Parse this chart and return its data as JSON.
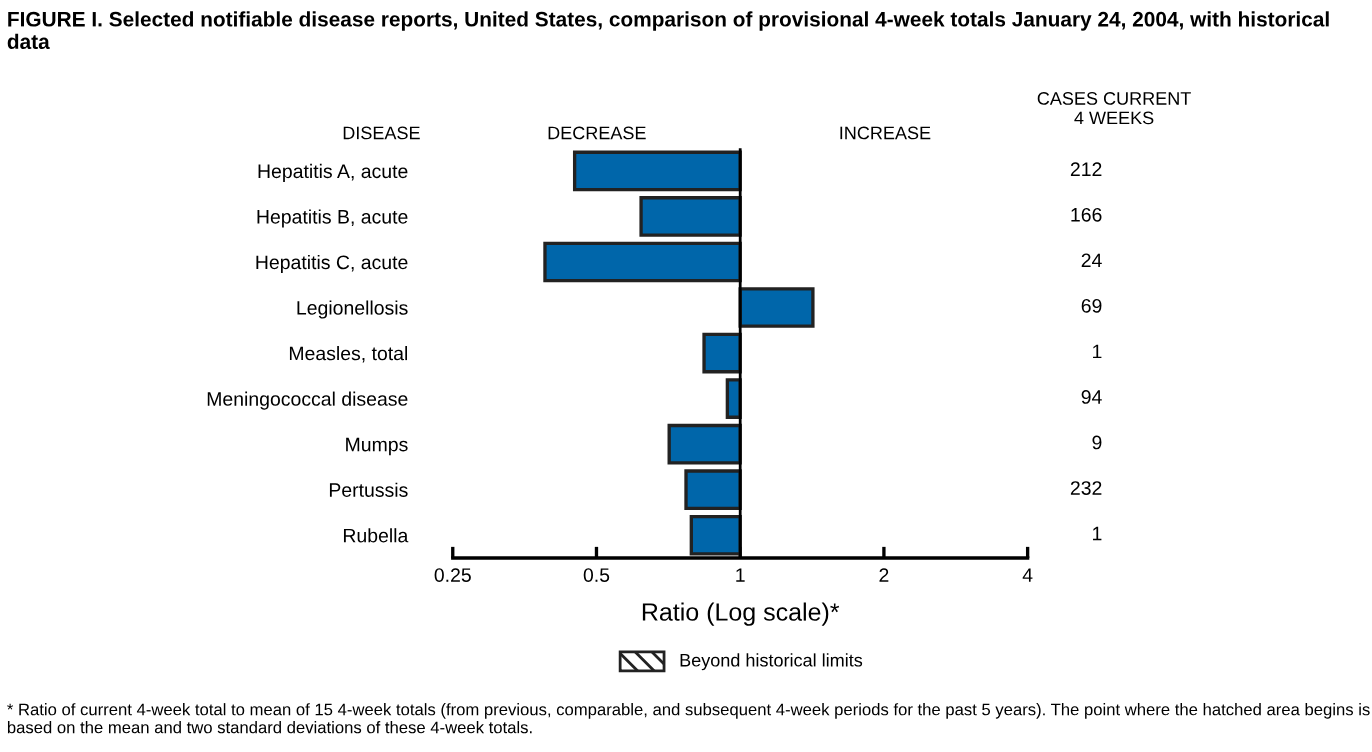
{
  "chart_data": {
    "type": "bar",
    "orientation": "horizontal",
    "log": "x",
    "title": "FIGURE I. Selected notifiable disease reports, United States, comparison of provisional 4-week totals January 24, 2004, with historical data",
    "categories": [
      "Hepatitis A, acute",
      "Hepatitis B, acute",
      "Hepatitis C, acute",
      "Legionellosis",
      "Measles, total",
      "Meningococcal disease",
      "Mumps",
      "Pertussis",
      "Rubella"
    ],
    "base": [
      1,
      1,
      1,
      1,
      1,
      1,
      1,
      1,
      1
    ],
    "values": [
      -0.55,
      -0.38,
      -0.61,
      0.42,
      -0.16,
      -0.06,
      -0.29,
      -0.23,
      -0.21
    ],
    "color": "#0066aa",
    "xlabel": "Ratio (Log scale)*",
    "xlim": [
      0.25,
      4
    ],
    "xticks": [
      0.25,
      0.5,
      1,
      2,
      4
    ],
    "ref_lines": [
      {
        "axis": "x",
        "value": 1,
        "color": "#000000"
      }
    ],
    "annotations": [
      "DISEASE",
      "DECREASE",
      "INCREASE",
      "CASES CURRENT\n4 WEEKS",
      "212",
      "166",
      "24",
      "69",
      "1",
      "94",
      "9",
      "232",
      "1",
      "Beyond historical limits",
      "* Ratio of current 4-week total to mean of 15 4-week totals (from previous, comparable, and subsequent 4-week periods for the past 5 years). The point where the hatched area begins is based on the mean and two standard deviations of these 4-week totals."
    ],
    "grid": false
  }
}
